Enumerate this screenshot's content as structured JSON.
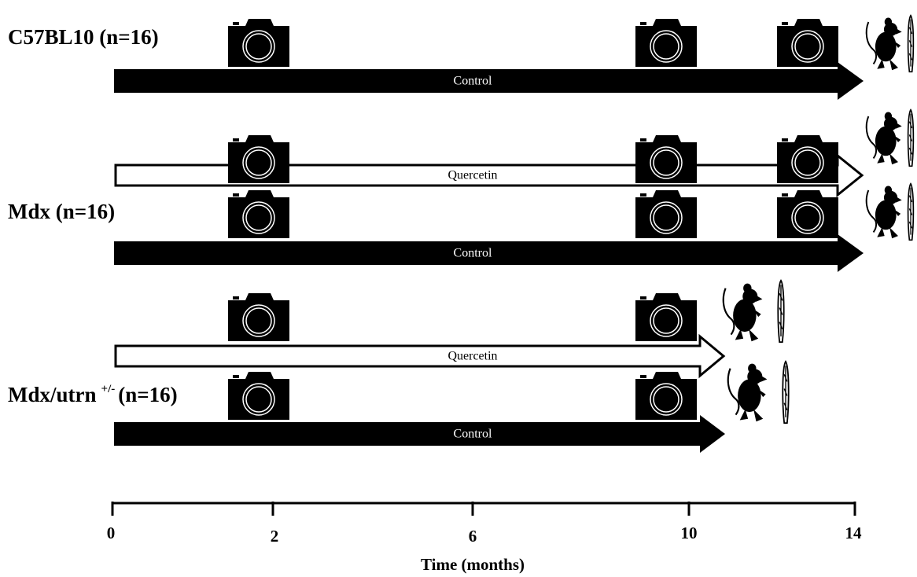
{
  "groups": [
    {
      "name": "C57BL10",
      "count": "(n=16)"
    },
    {
      "name": "Mdx",
      "count": "(n=16)"
    },
    {
      "name": "Mdx/utrn",
      "superscript": "+/-",
      "count": "(n=16)"
    }
  ],
  "arrows": [
    {
      "label": "Control"
    },
    {
      "label": "Quercetin"
    },
    {
      "label": "Control"
    },
    {
      "label": "Quercetin"
    },
    {
      "label": "Control"
    }
  ],
  "axis": {
    "ticks": [
      "0",
      "2",
      "6",
      "10",
      "14"
    ],
    "title": "Time (months)"
  }
}
